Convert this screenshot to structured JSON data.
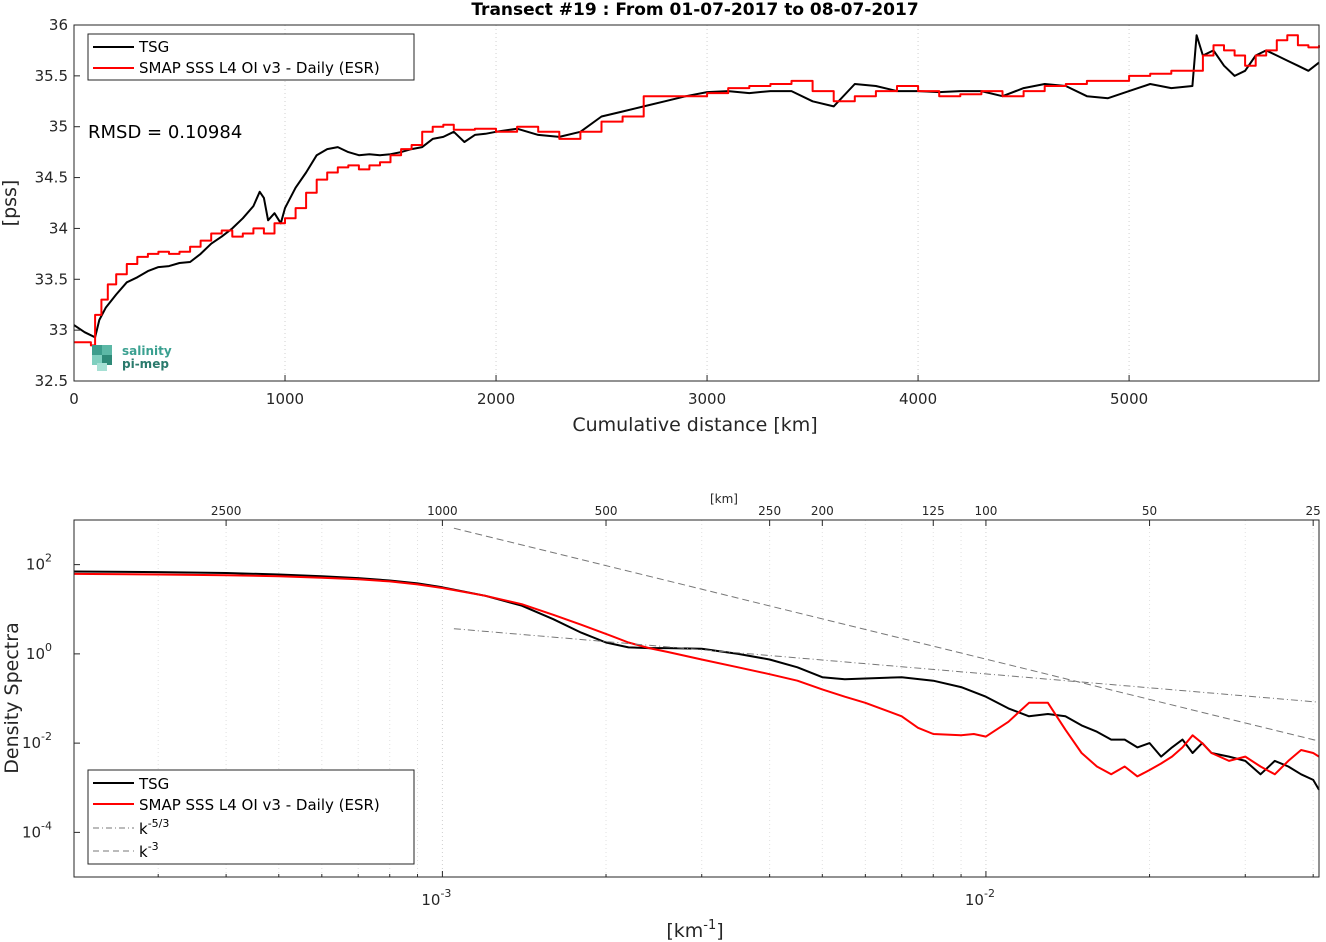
{
  "chart_data": [
    {
      "type": "line",
      "title": "Transect #19 : From 01-07-2017 to 08-07-2017",
      "xlabel": "Cumulative distance [km]",
      "ylabel": "[pss]",
      "xlim": [
        0,
        5900
      ],
      "ylim": [
        32.5,
        36
      ],
      "xticks": [
        0,
        1000,
        2000,
        3000,
        4000,
        5000
      ],
      "yticks": [
        32.5,
        33,
        33.5,
        34,
        34.5,
        35,
        35.5,
        36
      ],
      "xtick_labels": [
        "0",
        "1000",
        "2000",
        "3000",
        "4000",
        "5000"
      ],
      "ytick_labels": [
        "32.5",
        "33",
        "33.5",
        "34",
        "34.5",
        "35",
        "35.5",
        "36"
      ],
      "grid": "x",
      "legend_position": "top-left",
      "annotation": "RMSD = 0.10984",
      "logo": {
        "line1": "salinity",
        "line2": "pi-mep"
      },
      "series": [
        {
          "name": "TSG",
          "color": "#000000",
          "x": [
            0,
            50,
            100,
            120,
            150,
            200,
            250,
            300,
            350,
            400,
            450,
            500,
            550,
            600,
            650,
            700,
            750,
            800,
            850,
            880,
            900,
            920,
            950,
            980,
            1000,
            1050,
            1100,
            1150,
            1200,
            1250,
            1300,
            1350,
            1400,
            1450,
            1500,
            1550,
            1600,
            1650,
            1700,
            1750,
            1800,
            1850,
            1900,
            1950,
            2000,
            2100,
            2200,
            2300,
            2400,
            2500,
            2600,
            2700,
            2800,
            2900,
            3000,
            3100,
            3200,
            3300,
            3400,
            3500,
            3600,
            3700,
            3800,
            3900,
            4000,
            4100,
            4200,
            4300,
            4400,
            4500,
            4600,
            4700,
            4800,
            4900,
            5000,
            5100,
            5200,
            5300,
            5320,
            5350,
            5400,
            5450,
            5500,
            5550,
            5600,
            5650,
            5700,
            5750,
            5800,
            5850,
            5900
          ],
          "y": [
            33.05,
            32.98,
            32.93,
            33.1,
            33.22,
            33.35,
            33.47,
            33.52,
            33.58,
            33.62,
            33.63,
            33.66,
            33.67,
            33.75,
            33.85,
            33.92,
            34.0,
            34.1,
            34.22,
            34.36,
            34.3,
            34.08,
            34.15,
            34.05,
            34.2,
            34.4,
            34.55,
            34.72,
            34.78,
            34.8,
            34.75,
            34.72,
            34.73,
            34.72,
            34.73,
            34.75,
            34.78,
            34.8,
            34.88,
            34.9,
            34.95,
            34.85,
            34.92,
            34.93,
            34.95,
            34.98,
            34.92,
            34.9,
            34.95,
            35.1,
            35.15,
            35.2,
            35.25,
            35.3,
            35.34,
            35.35,
            35.33,
            35.35,
            35.35,
            35.25,
            35.2,
            35.42,
            35.4,
            35.35,
            35.35,
            35.34,
            35.35,
            35.35,
            35.3,
            35.38,
            35.42,
            35.4,
            35.3,
            35.28,
            35.35,
            35.42,
            35.38,
            35.4,
            35.9,
            35.7,
            35.75,
            35.6,
            35.5,
            35.55,
            35.7,
            35.75,
            35.7,
            35.65,
            35.6,
            35.55,
            35.63
          ]
        },
        {
          "name": "SMAP SSS L4 OI v3 - Daily (ESR)",
          "color": "#ff0000",
          "step": true,
          "x": [
            0,
            80,
            100,
            130,
            160,
            200,
            250,
            300,
            350,
            400,
            450,
            500,
            550,
            600,
            650,
            700,
            750,
            800,
            850,
            900,
            950,
            1000,
            1050,
            1100,
            1150,
            1200,
            1250,
            1300,
            1350,
            1400,
            1450,
            1500,
            1550,
            1600,
            1650,
            1700,
            1750,
            1800,
            1900,
            2000,
            2100,
            2200,
            2300,
            2400,
            2500,
            2600,
            2700,
            2800,
            2900,
            3000,
            3100,
            3200,
            3300,
            3400,
            3500,
            3600,
            3700,
            3800,
            3900,
            4000,
            4100,
            4200,
            4300,
            4400,
            4500,
            4600,
            4700,
            4800,
            4900,
            5000,
            5100,
            5200,
            5300,
            5350,
            5400,
            5450,
            5500,
            5550,
            5600,
            5650,
            5700,
            5750,
            5800,
            5850,
            5900
          ],
          "y": [
            32.88,
            32.85,
            33.15,
            33.3,
            33.45,
            33.55,
            33.65,
            33.72,
            33.75,
            33.77,
            33.75,
            33.77,
            33.82,
            33.88,
            33.95,
            33.98,
            33.92,
            33.95,
            34.0,
            33.95,
            34.05,
            34.1,
            34.2,
            34.35,
            34.48,
            34.55,
            34.6,
            34.62,
            34.58,
            34.62,
            34.65,
            34.72,
            34.78,
            34.82,
            34.95,
            35.0,
            35.02,
            34.97,
            34.98,
            34.95,
            35.0,
            34.95,
            34.88,
            34.95,
            35.05,
            35.1,
            35.3,
            35.3,
            35.3,
            35.33,
            35.38,
            35.4,
            35.42,
            35.45,
            35.35,
            35.25,
            35.3,
            35.35,
            35.4,
            35.35,
            35.3,
            35.32,
            35.35,
            35.3,
            35.35,
            35.4,
            35.42,
            35.45,
            35.45,
            35.5,
            35.52,
            35.55,
            35.55,
            35.7,
            35.8,
            35.75,
            35.7,
            35.6,
            35.7,
            35.75,
            35.85,
            35.9,
            35.8,
            35.78,
            35.8
          ]
        }
      ]
    },
    {
      "type": "line",
      "xlabel": "[km-1]",
      "ylabel": "Density Spectra",
      "xscale": "log",
      "yscale": "log",
      "xlim": [
        0.00021,
        0.041
      ],
      "ylim": [
        1e-05,
        1000
      ],
      "xticks": [
        0.001,
        0.01
      ],
      "xtick_labels": [
        "10",
        "10"
      ],
      "xtick_exponents": [
        "-3",
        "-2"
      ],
      "yticks": [
        0.0001,
        0.01,
        1,
        100
      ],
      "ytick_labels": [
        "10",
        "10",
        "10",
        "10"
      ],
      "ytick_exponents": [
        "-4",
        "-2",
        "0",
        "2"
      ],
      "top_axis_label": "[km]",
      "top_ticks": [
        2500,
        1000,
        500,
        250,
        200,
        125,
        100,
        50,
        25
      ],
      "top_tick_labels": [
        "2500",
        "1000",
        "500",
        "250",
        "200",
        "125",
        "100",
        "50",
        "25"
      ],
      "grid": "x",
      "legend_position": "bottom-left",
      "series": [
        {
          "name": "TSG",
          "color": "#000000",
          "x": [
            0.00021,
            0.0003,
            0.0004,
            0.0005,
            0.0006,
            0.0007,
            0.0008,
            0.0009,
            0.001,
            0.0012,
            0.0014,
            0.0016,
            0.0018,
            0.002,
            0.0022,
            0.0024,
            0.0026,
            0.003,
            0.0035,
            0.004,
            0.0045,
            0.005,
            0.0055,
            0.006,
            0.007,
            0.008,
            0.009,
            0.01,
            0.011,
            0.012,
            0.013,
            0.014,
            0.015,
            0.016,
            0.017,
            0.018,
            0.019,
            0.02,
            0.021,
            0.022,
            0.023,
            0.024,
            0.025,
            0.026,
            0.028,
            0.03,
            0.032,
            0.034,
            0.036,
            0.038,
            0.04,
            0.041
          ],
          "y": [
            70,
            68,
            65,
            60,
            55,
            50,
            44,
            38,
            31,
            20,
            12,
            6,
            3,
            1.8,
            1.4,
            1.35,
            1.35,
            1.3,
            1.0,
            0.75,
            0.5,
            0.3,
            0.27,
            0.28,
            0.3,
            0.25,
            0.18,
            0.11,
            0.06,
            0.04,
            0.045,
            0.04,
            0.025,
            0.018,
            0.012,
            0.012,
            0.008,
            0.01,
            0.005,
            0.008,
            0.012,
            0.006,
            0.01,
            0.006,
            0.005,
            0.004,
            0.002,
            0.004,
            0.003,
            0.002,
            0.0015,
            0.0009
          ]
        },
        {
          "name": "SMAP SSS L4 OI v3 - Daily (ESR)",
          "color": "#ff0000",
          "x": [
            0.00021,
            0.0003,
            0.0004,
            0.0005,
            0.0006,
            0.0007,
            0.0008,
            0.0009,
            0.001,
            0.0012,
            0.0014,
            0.0016,
            0.0018,
            0.002,
            0.0022,
            0.0024,
            0.0026,
            0.003,
            0.0035,
            0.004,
            0.0045,
            0.005,
            0.0055,
            0.006,
            0.007,
            0.0075,
            0.008,
            0.009,
            0.0095,
            0.01,
            0.011,
            0.012,
            0.013,
            0.014,
            0.015,
            0.016,
            0.017,
            0.018,
            0.019,
            0.02,
            0.021,
            0.022,
            0.023,
            0.024,
            0.025,
            0.026,
            0.028,
            0.03,
            0.032,
            0.034,
            0.036,
            0.038,
            0.04,
            0.041
          ],
          "y": [
            62,
            60,
            58,
            55,
            51,
            47,
            42,
            36,
            30,
            20,
            13,
            7.5,
            4.5,
            2.8,
            1.8,
            1.35,
            1.1,
            0.75,
            0.5,
            0.35,
            0.25,
            0.16,
            0.11,
            0.08,
            0.04,
            0.022,
            0.016,
            0.015,
            0.016,
            0.014,
            0.03,
            0.08,
            0.08,
            0.02,
            0.006,
            0.003,
            0.002,
            0.003,
            0.0018,
            0.0025,
            0.0035,
            0.005,
            0.008,
            0.015,
            0.01,
            0.006,
            0.004,
            0.005,
            0.003,
            0.002,
            0.004,
            0.007,
            0.006,
            0.005
          ]
        },
        {
          "name": "k^-5/3",
          "color": "#777777",
          "dash": "dashdot",
          "x": [
            0.00105,
            0.041
          ],
          "y": [
            3.66,
            0.0825
          ]
        },
        {
          "name": "k^-3",
          "color": "#777777",
          "dash": "dash",
          "x": [
            0.00105,
            0.041
          ],
          "y": [
            655,
            0.0111
          ]
        }
      ],
      "legend": [
        {
          "label": "TSG"
        },
        {
          "label": "SMAP SSS L4 OI v3 - Daily (ESR)"
        },
        {
          "label": "k",
          "superscript": "-5/3"
        },
        {
          "label": "k",
          "superscript": "-3"
        }
      ]
    }
  ]
}
